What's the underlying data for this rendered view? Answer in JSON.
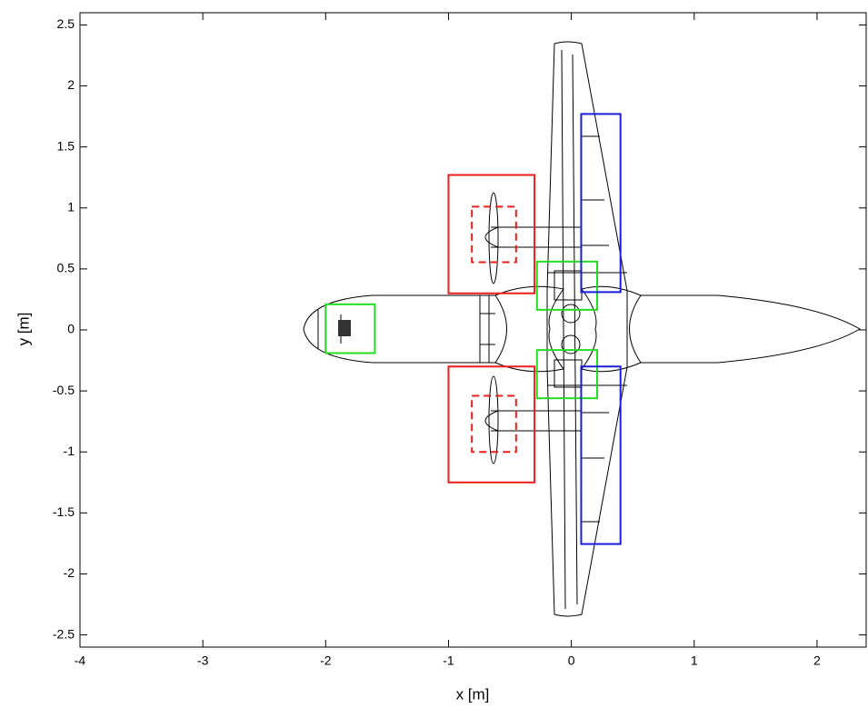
{
  "chart_data": {
    "type": "rectangles",
    "xlabel": "x [m]",
    "ylabel": "y [m]",
    "xlim": [
      -4,
      2.4
    ],
    "ylim": [
      -2.6,
      2.6
    ],
    "xticks": [
      -4,
      -3,
      -2,
      -1,
      0,
      1,
      2
    ],
    "yticks": [
      -2.5,
      -2,
      -1.5,
      -1,
      -0.5,
      0,
      0.5,
      1,
      1.5,
      2,
      2.5
    ],
    "boxes": [
      {
        "color": "#ee1c1c",
        "dashed": false,
        "x": [
          -1.0,
          -0.3
        ],
        "y": [
          0.3,
          1.27
        ]
      },
      {
        "color": "#ee1c1c",
        "dashed": false,
        "x": [
          -1.0,
          -0.3
        ],
        "y": [
          -1.25,
          -0.3
        ]
      },
      {
        "color": "#ee1c1c",
        "dashed": true,
        "x": [
          -0.81,
          -0.45
        ],
        "y": [
          0.555,
          1.01
        ]
      },
      {
        "color": "#ee1c1c",
        "dashed": true,
        "x": [
          -0.81,
          -0.45
        ],
        "y": [
          -1.0,
          -0.54
        ]
      },
      {
        "color": "#22dd22",
        "dashed": false,
        "x": [
          -2.0,
          -1.6
        ],
        "y": [
          -0.19,
          0.21
        ]
      },
      {
        "color": "#22dd22",
        "dashed": false,
        "x": [
          -0.28,
          0.21
        ],
        "y": [
          0.165,
          0.56
        ]
      },
      {
        "color": "#22dd22",
        "dashed": false,
        "x": [
          -0.28,
          0.21
        ],
        "y": [
          -0.56,
          -0.165
        ]
      },
      {
        "color": "#1c1cdd",
        "dashed": false,
        "x": [
          0.08,
          0.4
        ],
        "y": [
          0.31,
          1.77
        ]
      },
      {
        "color": "#1c1cdd",
        "dashed": false,
        "x": [
          0.08,
          0.4
        ],
        "y": [
          -1.755,
          -0.3
        ]
      }
    ]
  }
}
